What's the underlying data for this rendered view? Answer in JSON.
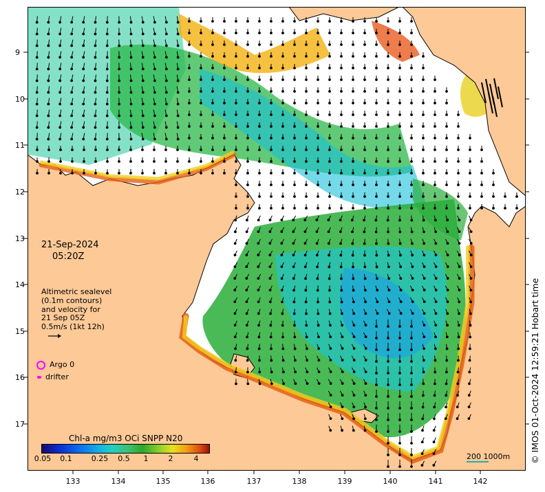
{
  "map": {
    "timestamp_date": "21-Sep-2024",
    "timestamp_time": "05:20Z",
    "lat_ticks": [
      "9",
      "10",
      "11",
      "12",
      "13",
      "14",
      "15",
      "16",
      "17"
    ],
    "lon_ticks": [
      "133",
      "134",
      "135",
      "136",
      "137",
      "138",
      "139",
      "140",
      "141",
      "142"
    ],
    "altimetry_lines": [
      "Altimetric sealevel",
      "(0.1m contours)",
      "and velocity for",
      "21 Sep 05Z",
      "0.5m/s (1kt 12h)"
    ],
    "argo_label": "Argo 0",
    "drifter_label": "drifter",
    "colorbar_title": "Chl-a mg/m3 OCi SNPP N20",
    "colorbar_ticks": [
      "0.05",
      "0.1",
      "0.25",
      "0.5",
      "1",
      "2",
      "4"
    ],
    "scale_label": "200  1000m",
    "credit": "© IMOS 01-Oct-2024 12:59:21 Hobart time",
    "colors": {
      "land": "#fcc997",
      "argo": "#ff00ff",
      "arrows": "#000000"
    }
  }
}
